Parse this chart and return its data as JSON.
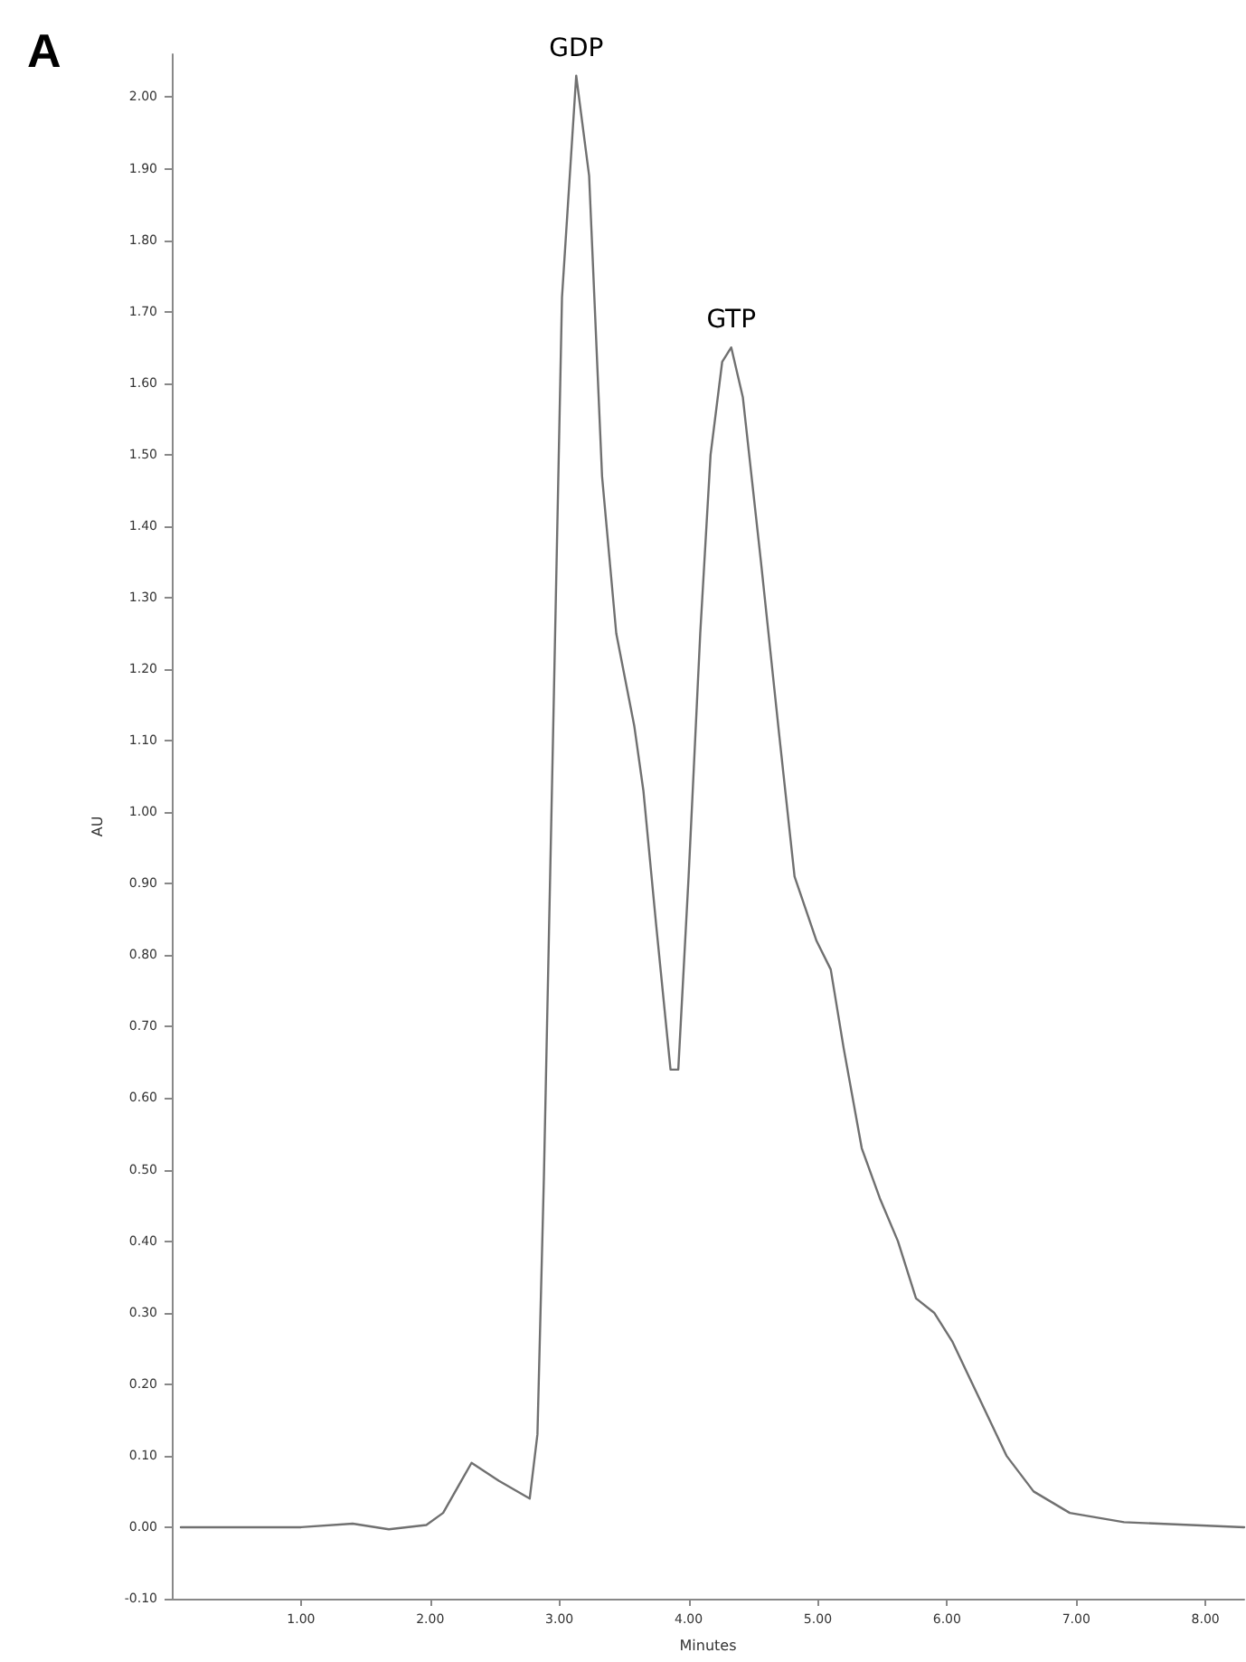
{
  "chart_data": {
    "type": "line",
    "title": "A",
    "xlabel": "Minutes",
    "ylabel": "AU",
    "series": [
      {
        "color": "#707070",
        "x": [
          0.07,
          1.0,
          1.4,
          1.68,
          1.97,
          2.1,
          2.32,
          2.53,
          2.77,
          2.83,
          2.88,
          2.95,
          3.02,
          3.13,
          3.23,
          3.33,
          3.44,
          3.58,
          3.65,
          3.75,
          3.86,
          3.92,
          4.0,
          4.09,
          4.17,
          4.26,
          4.33,
          4.42,
          4.56,
          4.7,
          4.82,
          4.99,
          5.1,
          5.2,
          5.34,
          5.48,
          5.62,
          5.76,
          5.9,
          6.04,
          6.25,
          6.46,
          6.67,
          6.95,
          7.37,
          8.3
        ],
        "values": [
          0.0,
          0.0,
          0.005,
          -0.003,
          0.003,
          0.02,
          0.09,
          0.065,
          0.04,
          0.13,
          0.49,
          1.1,
          1.72,
          2.03,
          1.89,
          1.47,
          1.25,
          1.12,
          1.03,
          0.84,
          0.64,
          0.64,
          0.91,
          1.25,
          1.5,
          1.63,
          1.65,
          1.58,
          1.35,
          1.11,
          0.91,
          0.82,
          0.78,
          0.67,
          0.53,
          0.46,
          0.4,
          0.32,
          0.3,
          0.26,
          0.18,
          0.1,
          0.05,
          0.02,
          0.007,
          0.0
        ]
      }
    ],
    "annotations": [
      {
        "text": "GDP",
        "x": 3.13,
        "y": 2.03
      },
      {
        "text": "GTP",
        "x": 4.33,
        "y": 1.65
      }
    ],
    "xlim": [
      0,
      8.3
    ],
    "ylim": [
      -0.1,
      2.06
    ],
    "xticks": [
      {
        "value": 1,
        "label": "1.00"
      },
      {
        "value": 2,
        "label": "2.00"
      },
      {
        "value": 3,
        "label": "3.00"
      },
      {
        "value": 4,
        "label": "4.00"
      },
      {
        "value": 5,
        "label": "5.00"
      },
      {
        "value": 6,
        "label": "6.00"
      },
      {
        "value": 7,
        "label": "7.00"
      },
      {
        "value": 8,
        "label": "8.00"
      }
    ],
    "yticks": [
      {
        "value": -0.1,
        "label": "-0.10"
      },
      {
        "value": 0,
        "label": "0.00"
      },
      {
        "value": 0.1,
        "label": "0.10"
      },
      {
        "value": 0.2,
        "label": "0.20"
      },
      {
        "value": 0.3,
        "label": "0.30"
      },
      {
        "value": 0.4,
        "label": "0.40"
      },
      {
        "value": 0.5,
        "label": "0.50"
      },
      {
        "value": 0.6,
        "label": "0.60"
      },
      {
        "value": 0.7,
        "label": "0.70"
      },
      {
        "value": 0.8,
        "label": "0.80"
      },
      {
        "value": 0.9,
        "label": "0.90"
      },
      {
        "value": 1.0,
        "label": "1.00"
      },
      {
        "value": 1.1,
        "label": "1.10"
      },
      {
        "value": 1.2,
        "label": "1.20"
      },
      {
        "value": 1.3,
        "label": "1.30"
      },
      {
        "value": 1.4,
        "label": "1.40"
      },
      {
        "value": 1.5,
        "label": "1.50"
      },
      {
        "value": 1.6,
        "label": "1.60"
      },
      {
        "value": 1.7,
        "label": "1.70"
      },
      {
        "value": 1.8,
        "label": "1.80"
      },
      {
        "value": 1.9,
        "label": "1.90"
      },
      {
        "value": 2.0,
        "label": "2.00"
      }
    ],
    "grid": false,
    "marker": "none",
    "line_style": "solid"
  }
}
